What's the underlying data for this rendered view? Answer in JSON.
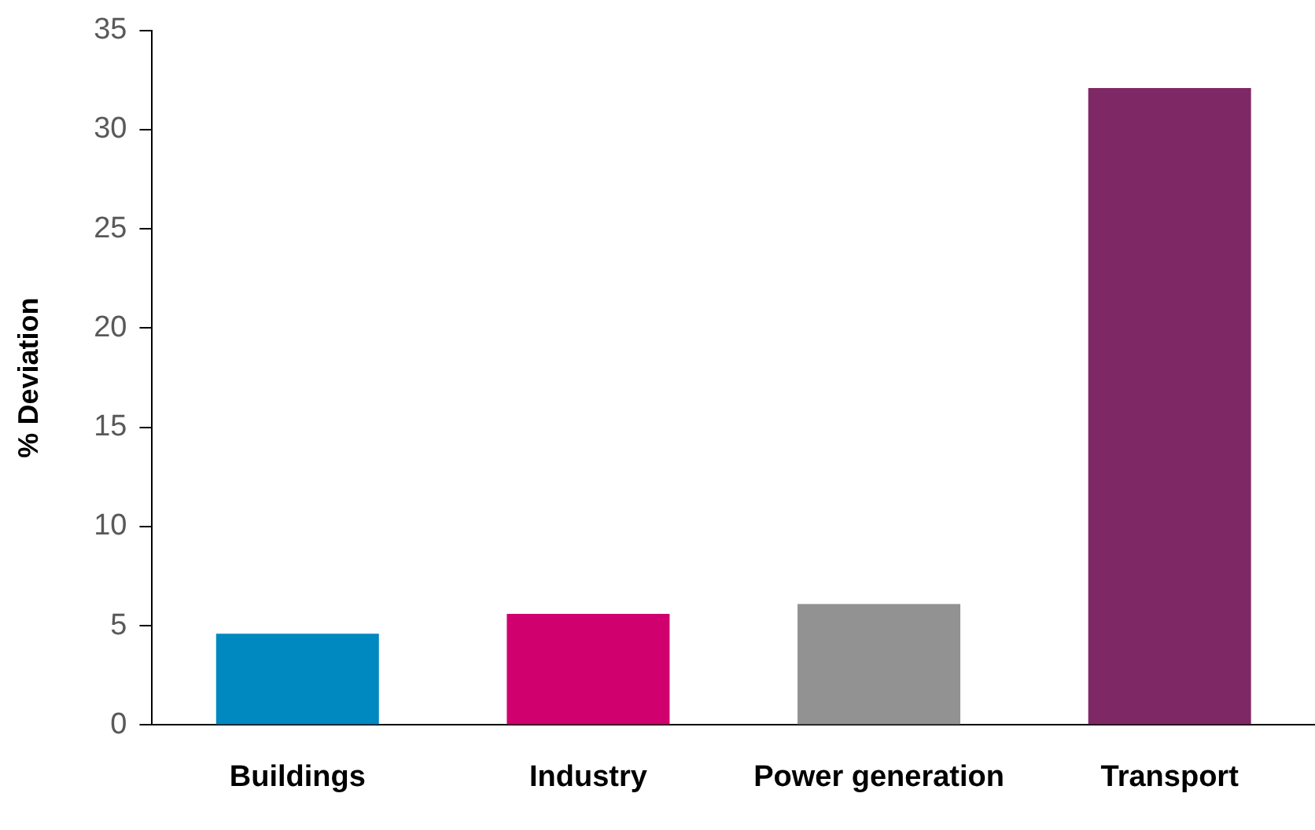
{
  "chart_data": {
    "type": "bar",
    "ylabel": "% Deviation",
    "categories": [
      "Buildings",
      "Industry",
      "Power generation",
      "Transport"
    ],
    "values": [
      4.6,
      5.6,
      6.1,
      32.1
    ],
    "colors": [
      "#0088c1",
      "#d0006f",
      "#929292",
      "#7f2866"
    ],
    "ylim": [
      0,
      35
    ],
    "yticks": [
      0,
      5,
      10,
      15,
      20,
      25,
      30,
      35
    ],
    "grid": false,
    "legend": false
  }
}
